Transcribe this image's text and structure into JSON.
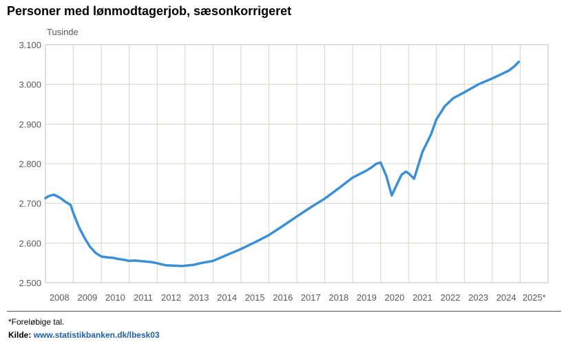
{
  "title": "Personer med lønmodtagerjob, sæsonkorrigeret",
  "footnote": "*Foreløbige tal.",
  "source_label": "Kilde:",
  "source_link": "www.statistikbanken.dk/lbesk03",
  "colors": {
    "line": "#3a8fd6",
    "grid": "#d4d4cc",
    "frame": "#bfbfbf",
    "link": "#1f5fa8"
  },
  "chart_data": {
    "type": "line",
    "title": "Personer med lønmodtagerjob, sæsonkorrigeret",
    "ylabel": "Tusinde",
    "ylim": [
      2500,
      3100
    ],
    "yticks": [
      2500,
      2600,
      2700,
      2800,
      2900,
      3000,
      3100
    ],
    "ytick_labels": [
      "2.500",
      "2.600",
      "2.700",
      "2.800",
      "2.900",
      "3.000",
      "3.100"
    ],
    "xlim": [
      2008.0,
      2026.0
    ],
    "categories": [
      "2008",
      "2009",
      "2010",
      "2011",
      "2012",
      "2013",
      "2014",
      "2015",
      "2016",
      "2017",
      "2018",
      "2019",
      "2020",
      "2021",
      "2022",
      "2023",
      "2024",
      "2025*"
    ],
    "grid": true,
    "x": [
      2008.0,
      2008.1,
      2008.3,
      2008.5,
      2008.7,
      2008.9,
      2009.0,
      2009.2,
      2009.4,
      2009.6,
      2009.8,
      2010.0,
      2010.2,
      2010.4,
      2010.6,
      2010.8,
      2011.0,
      2011.2,
      2011.5,
      2011.8,
      2012.0,
      2012.3,
      2012.6,
      2012.9,
      2013.0,
      2013.3,
      2013.6,
      2014.0,
      2014.5,
      2015.0,
      2015.5,
      2016.0,
      2016.5,
      2017.0,
      2017.5,
      2018.0,
      2018.5,
      2019.0,
      2019.5,
      2019.7,
      2019.85,
      2020.0,
      2020.2,
      2020.4,
      2020.6,
      2020.75,
      2020.9,
      2021.0,
      2021.2,
      2021.5,
      2021.8,
      2022.0,
      2022.3,
      2022.6,
      2023.0,
      2023.5,
      2024.0,
      2024.3,
      2024.6,
      2024.8,
      2024.95
    ],
    "values": [
      2713,
      2718,
      2722,
      2715,
      2705,
      2696,
      2675,
      2640,
      2613,
      2590,
      2575,
      2566,
      2564,
      2563,
      2560,
      2558,
      2555,
      2556,
      2554,
      2552,
      2549,
      2544,
      2543,
      2542,
      2543,
      2545,
      2550,
      2555,
      2570,
      2585,
      2602,
      2620,
      2643,
      2667,
      2690,
      2712,
      2738,
      2765,
      2783,
      2792,
      2800,
      2803,
      2770,
      2720,
      2750,
      2772,
      2780,
      2776,
      2762,
      2830,
      2873,
      2912,
      2945,
      2965,
      2980,
      3000,
      3015,
      3025,
      3035,
      3046,
      3057
    ]
  }
}
